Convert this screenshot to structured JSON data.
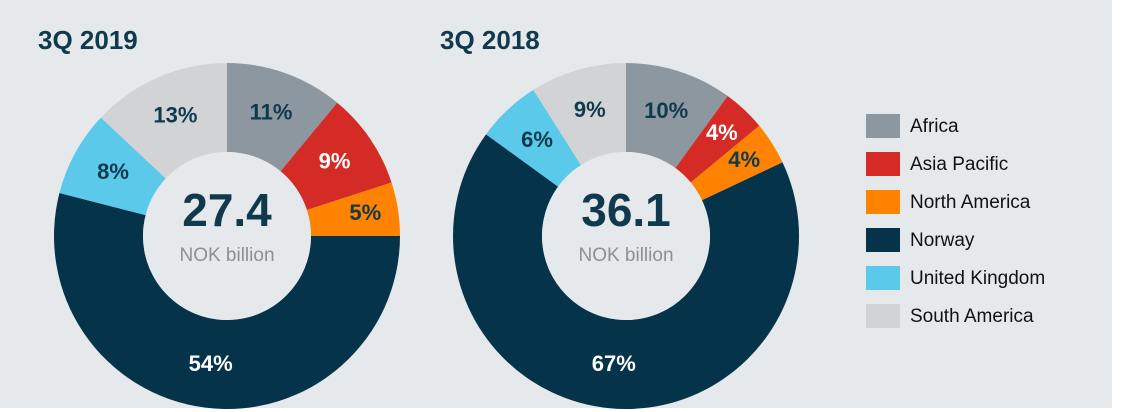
{
  "chart_data": [
    {
      "type": "pie",
      "title": "3Q 2019",
      "total": 27.4,
      "unit": "NOK billion",
      "categories": [
        "Africa",
        "Asia Pacific",
        "North America",
        "Norway",
        "United Kingdom",
        "South America"
      ],
      "values": [
        11,
        9,
        5,
        54,
        8,
        13
      ],
      "value_labels": [
        "11%",
        "9%",
        "5%",
        "54%",
        "8%",
        "13%"
      ],
      "colors": [
        "#8c979f",
        "#d52b26",
        "#ff8200",
        "#05334a",
        "#5bc9e9",
        "#d2d3d4"
      ]
    },
    {
      "type": "pie",
      "title": "3Q 2018",
      "total": 36.1,
      "unit": "NOK billion",
      "categories": [
        "Africa",
        "Asia Pacific",
        "North America",
        "Norway",
        "United Kingdom",
        "South America"
      ],
      "values": [
        10,
        4,
        4,
        67,
        6,
        9
      ],
      "value_labels": [
        "10%",
        "4%",
        "4%",
        "67%",
        "6%",
        "9%"
      ],
      "colors": [
        "#8c979f",
        "#d52b26",
        "#ff8200",
        "#05334a",
        "#5bc9e9",
        "#d2d3d4"
      ]
    }
  ]
}
